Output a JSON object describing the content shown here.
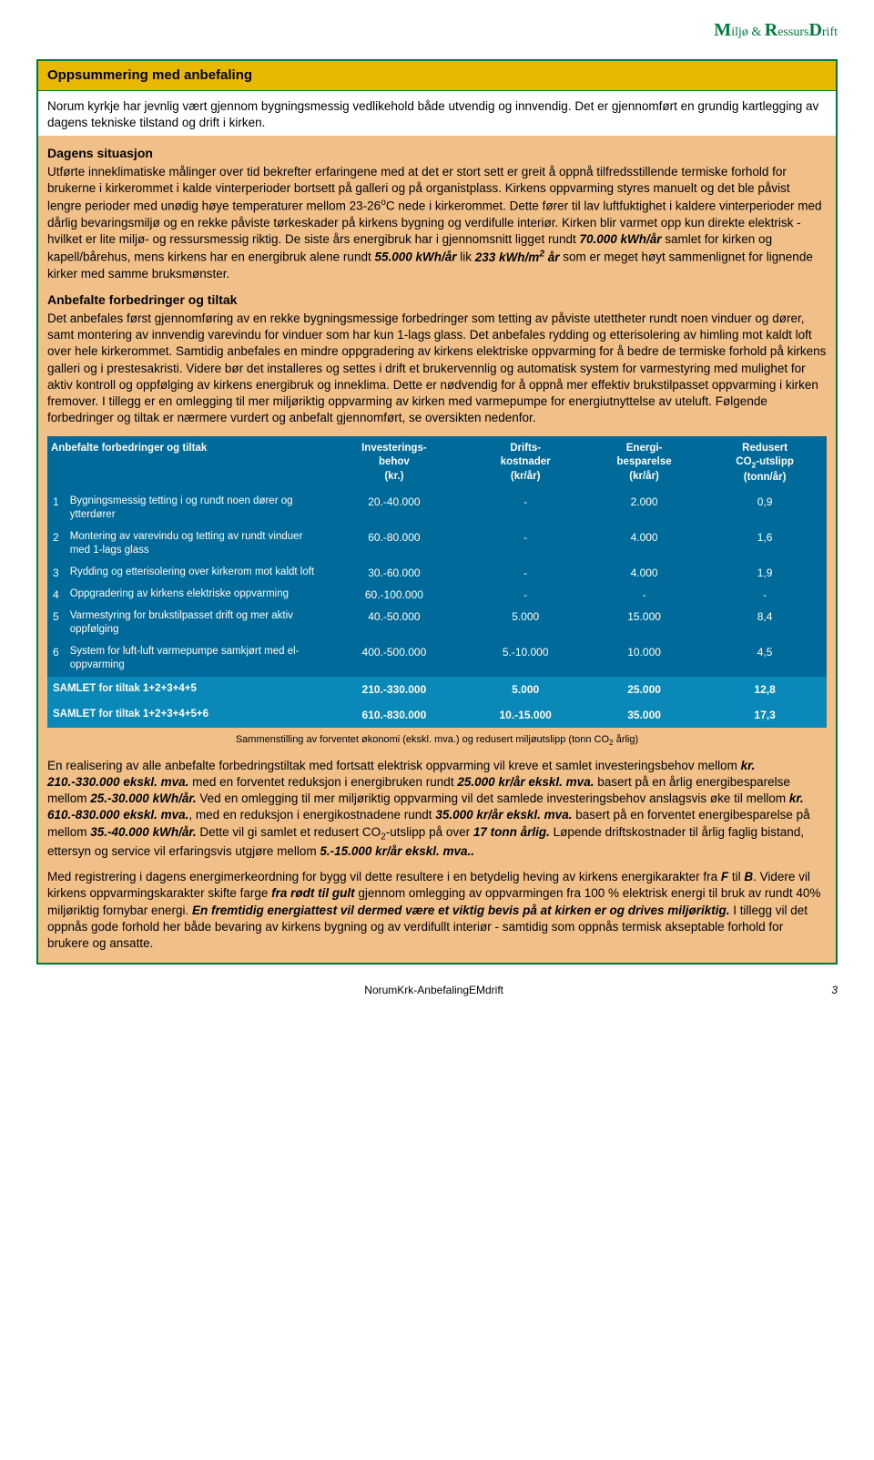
{
  "header": {
    "text_html": "<span class='big'>M</span>iljø &amp; <span class='big'>R</span>essurs<span class='big'>D</span>rift"
  },
  "title": "Oppsummering med anbefaling",
  "intro_html": "Norum kyrkje har jevnlig vært gjennom bygningsmessig vedlikehold både utvendig og innvendig. Det er gjennomført en grundig kartlegging av dagens tekniske tilstand og drift i kirken.",
  "section1_heading": "Dagens situasjon",
  "section1_html": "Utførte inneklimatiske målinger over tid bekrefter erfaringene med at det er stort sett er greit å oppnå tilfredsstillende termiske forhold for brukerne i kirkerommet i kalde vinterperioder bortsett på galleri og på organistplass. Kirkens oppvarming styres manuelt og det ble påvist lengre perioder med unødig høye temperaturer mellom 23-26<sup>o</sup>C nede i kirkerommet. Dette fører til lav luftfuktighet i kaldere vinterperioder med dårlig bevaringsmiljø og en rekke påviste tørkeskader på kirkens bygning og verdifulle interiør. Kirken blir varmet opp kun direkte elektrisk - hvilket er lite miljø- og ressursmessig riktig. De siste års energibruk har i gjennomsnitt ligget rundt <span class='bolditalic'>70.000 kWh/år</span> samlet for kirken og kapell/bårehus, mens kirkens har en energibruk alene rundt <span class='bolditalic'>55.000 kWh/år</span> lik <span class='bolditalic'>233 kWh/m<sup>2</sup> år</span> som er meget høyt sammenlignet for lignende kirker med samme bruksmønster.",
  "section2_heading": "Anbefalte forbedringer og tiltak",
  "section2_html": "Det anbefales først gjennomføring av en rekke bygningsmessige forbedringer som tetting av påviste utettheter rundt noen vinduer og dører, samt montering av innvendig varevindu for vinduer som har kun 1-lags glass. Det anbefales rydding og etterisolering av himling mot kaldt loft over hele kirkerommet. Samtidig anbefales en mindre oppgradering av kirkens elektriske oppvarming for å bedre de termiske forhold på kirkens galleri og i prestesakristi. Videre bør det installeres og settes i drift et brukervennlig og automatisk system for varmestyring med mulighet for aktiv kontroll og oppfølging av kirkens energibruk og inneklima. Dette er nødvendig for å oppnå mer effektiv brukstilpasset oppvarming i kirken fremover. I tillegg er en omlegging til mer miljøriktig oppvarming av kirken med varmepumpe for energiutnyttelse av uteluft. Følgende forbedringer og tiltak er nærmere vurdert og anbefalt gjennomført, se oversikten nedenfor.",
  "table": {
    "columns": [
      "Anbefalte forbedringer og tiltak",
      "Investerings-<br>behov<br>(kr.)",
      "Drifts-<br>kostnader<br>(kr/år)",
      "Energi-<br>besparelse<br>(kr/år)",
      "Redusert<br>CO<sub>2</sub>-utslipp<br>(tonn/år)"
    ],
    "rows": [
      {
        "n": "1",
        "desc": "Bygningsmessig tetting i og rundt noen dører og ytterdører",
        "c1": "20.-40.000",
        "c2": "-",
        "c3": "2.000",
        "c4": "0,9"
      },
      {
        "n": "2",
        "desc": "Montering av varevindu og tetting av rundt vinduer med 1-lags glass",
        "c1": "60.-80.000",
        "c2": "-",
        "c3": "4.000",
        "c4": "1,6"
      },
      {
        "n": "3",
        "desc": "Rydding og etterisolering over kirkerom mot kaldt loft",
        "c1": "30.-60.000",
        "c2": "-",
        "c3": "4.000",
        "c4": "1,9"
      },
      {
        "n": "4",
        "desc": "Oppgradering av kirkens elektriske oppvarming",
        "c1": "60.-100.000",
        "c2": "-",
        "c3": "-",
        "c4": "-"
      },
      {
        "n": "5",
        "desc": "Varmestyring for brukstilpasset drift og mer aktiv oppfølging",
        "c1": "40.-50.000",
        "c2": "5.000",
        "c3": "15.000",
        "c4": "8,4"
      },
      {
        "n": "6",
        "desc": "System for luft-luft varmepumpe samkjørt med el-oppvarming",
        "c1": "400.-500.000",
        "c2": "5.-10.000",
        "c3": "10.000",
        "c4": "4,5"
      }
    ],
    "sums": [
      {
        "desc": "SAMLET for tiltak 1+2+3+4+5",
        "c1": "210.-330.000",
        "c2": "5.000",
        "c3": "25.000",
        "c4": "12,8"
      },
      {
        "desc": "SAMLET for tiltak 1+2+3+4+5+6",
        "c1": "610.-830.000",
        "c2": "10.-15.000",
        "c3": "35.000",
        "c4": "17,3"
      }
    ],
    "caption_html": "Sammenstilling av forventet økonomi (ekskl. mva.) og redusert miljøutslipp (tonn CO<sub>2</sub> årlig)"
  },
  "section3_html": "En realisering av alle anbefalte forbedringstiltak med fortsatt elektrisk oppvarming vil kreve et samlet investeringsbehov mellom <span class='bolditalic'>kr. 210.-330.000 ekskl. mva.</span> med en forventet reduksjon i energibruken rundt <span class='bolditalic'>25.000 kr/år ekskl. mva.</span> basert på en årlig energibesparelse mellom <span class='bolditalic'>25.-30.000 kWh/år.</span> Ved en omlegging til mer miljøriktig oppvarming vil det samlede investeringsbehov anslagsvis øke til mellom <span class='bolditalic'>kr. 610.-830.000 ekskl. mva.</span>, med en reduksjon i energikostnadene rundt <span class='bolditalic'>35.000 kr/år ekskl. mva.</span> basert på en forventet energibesparelse på mellom <span class='bolditalic'>35.-40.000 kWh/år.</span> Dette vil gi samlet et redusert CO<sub>2</sub>-utslipp på over <span class='bolditalic'>17 tonn årlig.</span> Løpende driftskostnader til årlig faglig bistand, ettersyn og service vil erfaringsvis utgjøre mellom <span class='bolditalic'>5.-15.000 kr/år ekskl. mva..</span>",
  "section4_html": "Med registrering i dagens energimerkeordning for bygg vil dette resultere i en betydelig heving av kirkens energikarakter fra <span class='bolditalic'>F</span> til <span class='bolditalic'>B</span>. Videre vil kirkens oppvarmingskarakter skifte farge <span class='bolditalic'>fra rødt til gult</span> gjennom omlegging av oppvarmingen fra 100 % elektrisk energi til bruk av rundt 40% miljøriktig fornybar energi. <span class='bolditalic'>En fremtidig energiattest vil dermed være et viktig bevis på at kirken er og drives miljøriktig.</span> I tillegg vil det oppnås gode forhold her både bevaring av kirkens bygning og av verdifullt interiør - samtidig som oppnås termisk akseptable forhold for brukere og ansatte.",
  "footer": {
    "doc": "NorumKrk-AnbefalingEMdrift",
    "page": "3"
  }
}
